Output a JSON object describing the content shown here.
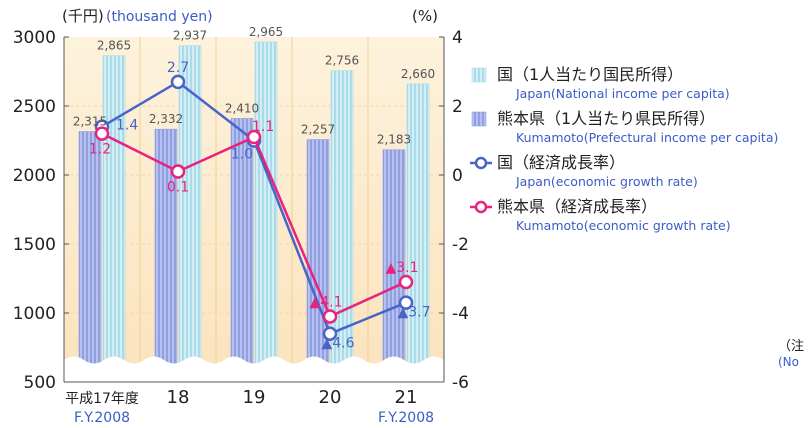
{
  "chart_data": {
    "type": "bar",
    "left_axis_label_ja": "(千円)",
    "left_axis_label_en": "(thousand yen)",
    "right_axis_label": "(%)",
    "left_ylim": [
      500,
      3000
    ],
    "left_ticks": [
      "500",
      "1000",
      "1500",
      "2000",
      "2500",
      "3000"
    ],
    "right_ylim": [
      -6,
      4
    ],
    "right_ticks": [
      "-6",
      "-4",
      "-2",
      "0",
      "2",
      "4"
    ],
    "categories": [
      "平成17年度",
      "18",
      "19",
      "20",
      "21"
    ],
    "category_notes": [
      "F.Y.2008",
      "",
      "",
      "",
      "F.Y.2008"
    ],
    "series": [
      {
        "name": "熊本県（1人当たり県民所得）",
        "name_en": "Kumamoto(Prefectural income per capita)",
        "kind": "bar",
        "axis": "left",
        "color": "#8f9fe0",
        "values": [
          2315,
          2332,
          2410,
          2257,
          2183
        ],
        "labels": [
          "2,315",
          "2,332",
          "2,410",
          "2,257",
          "2,183"
        ]
      },
      {
        "name": "国（1人当たり国民所得）",
        "name_en": "Japan(National income per capita)",
        "kind": "bar",
        "axis": "left",
        "color": "#a9dbe8",
        "values": [
          2865,
          2937,
          2965,
          2756,
          2660
        ],
        "labels": [
          "2,865",
          "2,937",
          "2,965",
          "2,756",
          "2,660"
        ]
      },
      {
        "name": "国（経済成長率）",
        "name_en": "Japan(economic growth rate)",
        "kind": "line",
        "axis": "right",
        "color": "#4a63c8",
        "values": [
          1.4,
          2.7,
          1.0,
          -4.6,
          -3.7
        ],
        "labels": [
          "1.4",
          "2.7",
          "1.0",
          "▲4.6",
          "▲3.7"
        ]
      },
      {
        "name": "熊本県（経済成長率）",
        "name_en": "Kumamoto(economic growth rate)",
        "kind": "line",
        "axis": "right",
        "color": "#e6237e",
        "values": [
          1.2,
          0.1,
          1.1,
          -4.1,
          -3.1
        ],
        "labels": [
          "1.2",
          "0.1",
          "1.1",
          "▲4.1",
          "▲3.1"
        ]
      }
    ],
    "legend_position": "right",
    "side_note": [
      "（注",
      "(No"
    ]
  }
}
